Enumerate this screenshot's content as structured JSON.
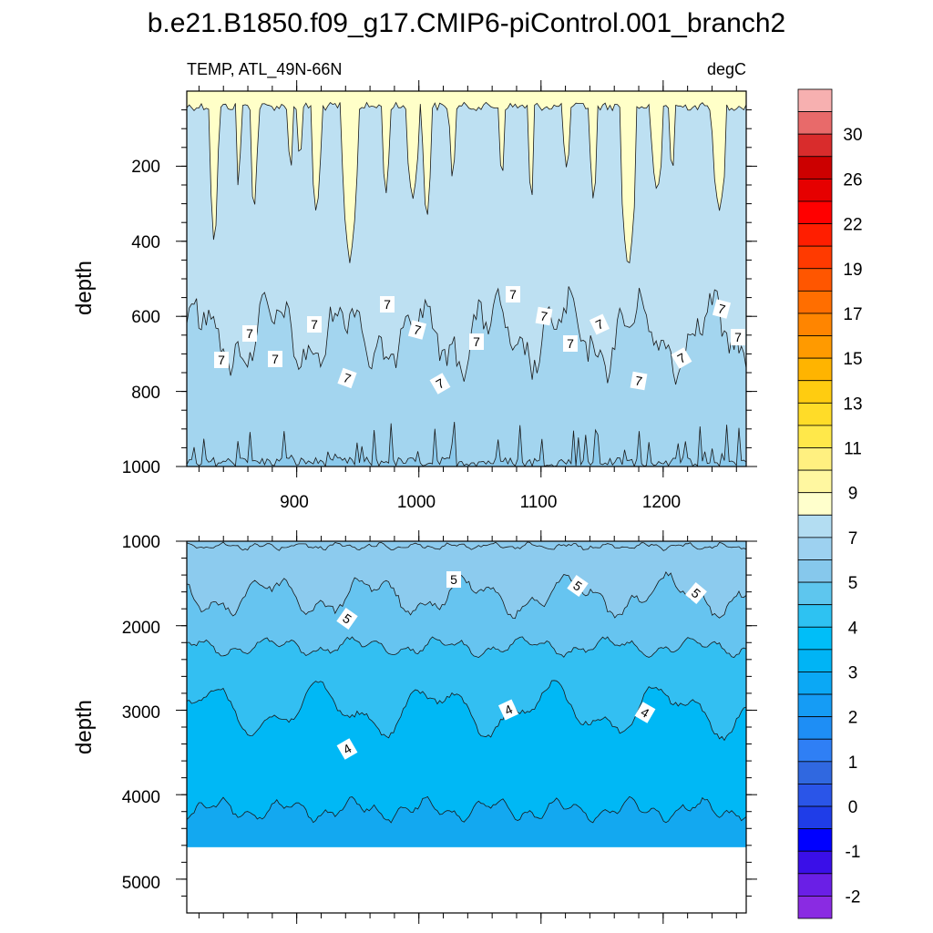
{
  "title": "b.e21.B1850.f09_g17.CMIP6-piControl.001_branch2",
  "chart_data": {
    "type": "heatmap",
    "variable": "TEMP, ATL_49N-66N",
    "units": "degC",
    "ylabel": "depth",
    "x_ticks": [
      900,
      1000,
      1100,
      1200
    ],
    "xlim": [
      810,
      1268
    ],
    "colorbar": {
      "levels": [
        -2,
        -1,
        0,
        1,
        2,
        3,
        4,
        5,
        7,
        9,
        11,
        13,
        15,
        17,
        19,
        22,
        26,
        30
      ],
      "labels": [
        "-2",
        "-1",
        "0",
        "1",
        "2",
        "3",
        "4",
        "5",
        "7",
        "9",
        "11",
        "13",
        "15",
        "17",
        "19",
        "22",
        "26",
        "30"
      ],
      "colors": [
        "#8a2be2",
        "#6a1fe6",
        "#3a0fe8",
        "#0000ff",
        "#1f3de8",
        "#2a55e8",
        "#3068e0",
        "#2f7ff5",
        "#1e8ef5",
        "#159cf5",
        "#0ba8f5",
        "#00b4f5",
        "#00bef8",
        "#2ec2f2",
        "#5ec6ee",
        "#86c8ec",
        "#9dd1f0",
        "#b3ddf2",
        "#ffffcc",
        "#fff7a0",
        "#fff080",
        "#ffe84a",
        "#ffdc28",
        "#ffcc10",
        "#ffb400",
        "#ff9a00",
        "#ff8500",
        "#ff6e00",
        "#ff5600",
        "#ff3a00",
        "#ff1e00",
        "#ff0000",
        "#e60000",
        "#cc0000",
        "#d92c2c",
        "#e86a6a",
        "#f7b0b0"
      ]
    },
    "panels": [
      {
        "name": "upper",
        "yticks": [
          200,
          400,
          600,
          800,
          1000
        ],
        "ylim": [
          0,
          1000
        ],
        "regions": [
          {
            "range": "7-9",
            "color": "#ffffc8"
          },
          {
            "range": "5-7 (upper)",
            "color": "#bde0f2"
          },
          {
            "range": "5-7 (lower)",
            "color": "#a3d5ef"
          },
          {
            "range": "4-5",
            "color": "#8ac9ec"
          }
        ],
        "contour_labels": [
          "7",
          "7",
          "7",
          "7",
          "7",
          "7",
          "7",
          "7",
          "7",
          "7",
          "7",
          "7",
          "7",
          "7",
          "7",
          "7",
          "7"
        ]
      },
      {
        "name": "lower",
        "yticks": [
          1000,
          2000,
          3000,
          4000,
          5000
        ],
        "ylim": [
          1000,
          5400
        ],
        "regions": [
          {
            "range": "5-7",
            "color": "#8ccbee"
          },
          {
            "range": "4.5-5",
            "color": "#66c4f0"
          },
          {
            "range": "4-4.5",
            "color": "#33bff2"
          },
          {
            "range": "3.5-4",
            "color": "#00b8f5"
          },
          {
            "range": "3-3.5",
            "color": "#13a8f0"
          }
        ],
        "contour_labels": [
          "5",
          "5",
          "5",
          "5",
          "4",
          "4",
          "4"
        ]
      }
    ]
  }
}
